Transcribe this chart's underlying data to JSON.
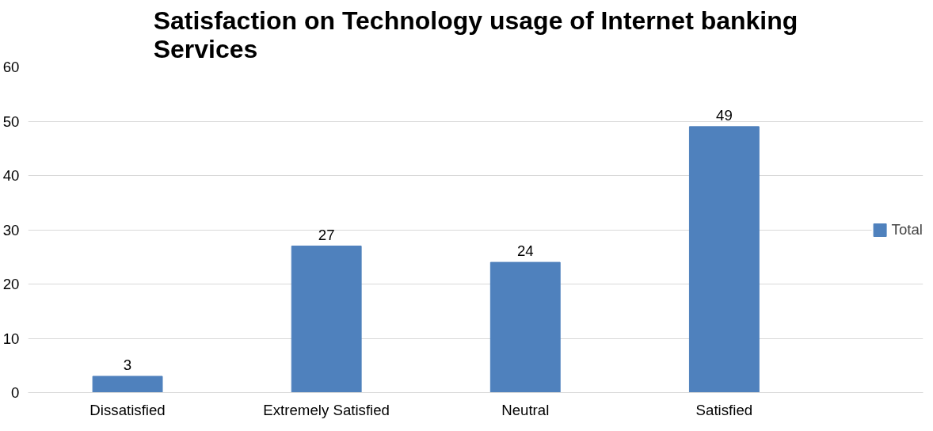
{
  "chart_data": {
    "type": "bar",
    "title": "Satisfaction on Technology usage of Internet banking Services",
    "categories": [
      "Dissatisfied",
      "Extremely Satisfied",
      "Neutral",
      "Satisfied"
    ],
    "series": [
      {
        "name": "Total",
        "color": "#4f81bd",
        "values": [
          3,
          27,
          24,
          49
        ]
      }
    ],
    "ylim": [
      0,
      60
    ],
    "yticks": [
      0,
      10,
      20,
      30,
      40,
      50,
      60
    ],
    "grid": "y",
    "legend": "right",
    "data_labels": true
  }
}
